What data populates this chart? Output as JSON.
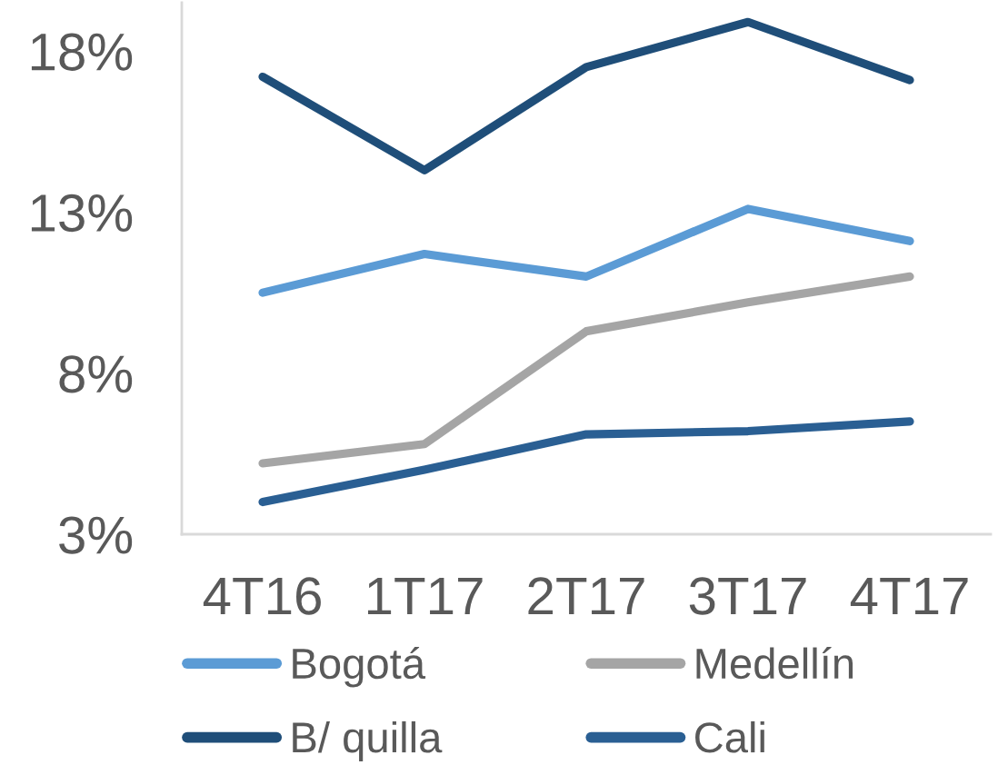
{
  "chart_data": {
    "type": "line",
    "categories": [
      "4T16",
      "1T17",
      "2T17",
      "3T17",
      "4T17"
    ],
    "series": [
      {
        "name": "Bogotá",
        "color": "#5b9bd5",
        "values": [
          10.5,
          11.7,
          11.0,
          13.1,
          12.1
        ]
      },
      {
        "name": "Medellín",
        "color": "#a5a5a5",
        "values": [
          5.2,
          5.8,
          9.3,
          10.2,
          11.0
        ]
      },
      {
        "name": "B/ quilla",
        "color": "#1f4e79",
        "values": [
          17.2,
          14.3,
          17.5,
          18.9,
          17.1
        ]
      },
      {
        "name": "Cali",
        "color": "#2a5f93",
        "values": [
          4.0,
          5.0,
          6.1,
          6.2,
          6.5
        ]
      }
    ],
    "ylim": [
      3,
      19.5
    ],
    "yticks": [
      {
        "value": 3,
        "label": "3%"
      },
      {
        "value": 8,
        "label": "8%"
      },
      {
        "value": 13,
        "label": "13%"
      },
      {
        "value": 18,
        "label": "18%"
      }
    ],
    "grid": false,
    "legend": "bottom",
    "marker": "none",
    "line_style": "solid"
  }
}
